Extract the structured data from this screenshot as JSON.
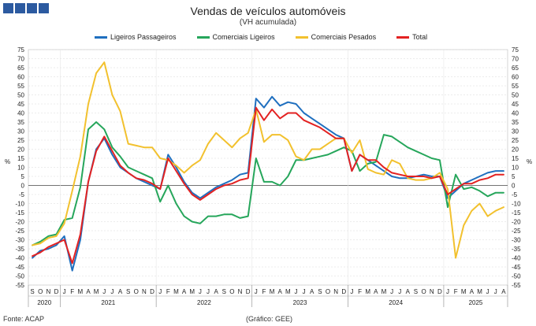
{
  "header": {
    "title": "Vendas de veículos automóveis",
    "subtitle": "(VH acumulada)"
  },
  "footer": {
    "source": "Fonte: ACAP",
    "credit": "(Gráfico: GEE)"
  },
  "axis": {
    "unit_left": "%",
    "unit_right": "%"
  },
  "colors": {
    "ligeiros_passageiros": "#1f6fbf",
    "comerciais_ligeiros": "#26a65b",
    "comerciais_pesados": "#f2c12e",
    "total": "#e32222",
    "header_blocks": "#2c5aa0"
  },
  "chart_data": {
    "type": "line",
    "title": "Vendas de veículos automóveis",
    "subtitle": "(VH acumulada)",
    "ylabel": "%",
    "ylim": [
      -55,
      75
    ],
    "yticks": [
      -55,
      -50,
      -45,
      -40,
      -35,
      -30,
      -25,
      -20,
      -15,
      -10,
      -5,
      0,
      5,
      10,
      15,
      20,
      25,
      30,
      35,
      40,
      45,
      50,
      55,
      60,
      65,
      70,
      75
    ],
    "grid": true,
    "legend_position": "top",
    "months": [
      "S",
      "O",
      "N",
      "D",
      "J",
      "F",
      "M",
      "A",
      "M",
      "J",
      "J",
      "A",
      "S",
      "O",
      "N",
      "D",
      "J",
      "F",
      "M",
      "A",
      "M",
      "J",
      "J",
      "A",
      "S",
      "O",
      "N",
      "D",
      "J",
      "F",
      "M",
      "A",
      "M",
      "J",
      "J",
      "A",
      "S",
      "O",
      "N",
      "D",
      "J",
      "F",
      "M",
      "A",
      "M",
      "J",
      "J",
      "A",
      "S",
      "O",
      "N",
      "D",
      "J",
      "F",
      "M",
      "A",
      "M",
      "J",
      "J",
      "A"
    ],
    "years": [
      {
        "label": "2020",
        "start": 0,
        "count": 4
      },
      {
        "label": "2021",
        "start": 4,
        "count": 12
      },
      {
        "label": "2022",
        "start": 16,
        "count": 12
      },
      {
        "label": "2023",
        "start": 28,
        "count": 12
      },
      {
        "label": "2024",
        "start": 40,
        "count": 12
      },
      {
        "label": "2025",
        "start": 52,
        "count": 8
      }
    ],
    "series": [
      {
        "name": "Ligeiros Passageiros",
        "color": "#1f6fbf",
        "values": [
          -40,
          -36,
          -35,
          -33,
          -28,
          -47,
          -30,
          2,
          20,
          26,
          17,
          10,
          7,
          4,
          2,
          0,
          -2,
          17,
          10,
          2,
          -4,
          -7,
          -4,
          -1,
          1,
          3,
          6,
          7,
          48,
          43,
          49,
          44,
          46,
          45,
          40,
          37,
          34,
          31,
          28,
          26,
          8,
          17,
          14,
          11,
          8,
          5,
          4,
          4,
          5,
          6,
          5,
          5,
          -7,
          -3,
          1,
          3,
          5,
          7,
          8,
          8
        ]
      },
      {
        "name": "Comerciais Ligeiros",
        "color": "#26a65b",
        "values": [
          -33,
          -31,
          -28,
          -27,
          -19,
          -18,
          -1,
          31,
          35,
          31,
          21,
          16,
          10,
          8,
          6,
          4,
          -9,
          0,
          -10,
          -17,
          -20,
          -21,
          -17,
          -17,
          -16,
          -16,
          -18,
          -17,
          15,
          2,
          2,
          0,
          5,
          14,
          14,
          15,
          16,
          17,
          19,
          21,
          19,
          8,
          12,
          13,
          28,
          27,
          24,
          21,
          19,
          17,
          15,
          14,
          -12,
          6,
          -2,
          -1,
          -3,
          -6,
          -4,
          -4
        ]
      },
      {
        "name": "Comerciais Pesados",
        "color": "#f2c12e",
        "values": [
          -33,
          -32,
          -29,
          -28,
          -21,
          -3,
          16,
          45,
          62,
          68,
          50,
          41,
          23,
          22,
          21,
          21,
          15,
          14,
          11,
          7,
          11,
          14,
          23,
          29,
          25,
          21,
          26,
          29,
          42,
          24,
          28,
          28,
          25,
          16,
          14,
          20,
          20,
          23,
          26,
          26,
          18,
          25,
          9,
          7,
          6,
          14,
          12,
          4,
          3,
          3,
          4,
          7,
          -2,
          -40,
          -22,
          -14,
          -10,
          -17,
          -14,
          -12
        ]
      },
      {
        "name": "Total",
        "color": "#e32222",
        "values": [
          -39,
          -37,
          -34,
          -32,
          -30,
          -43,
          -27,
          2,
          19,
          27,
          19,
          11,
          7,
          4,
          3,
          1,
          -2,
          15,
          8,
          1,
          -5,
          -8,
          -5,
          -2,
          0,
          1,
          3,
          4,
          43,
          36,
          42,
          37,
          40,
          40,
          36,
          34,
          32,
          29,
          26,
          26,
          8,
          17,
          14,
          14,
          10,
          7,
          6,
          5,
          5,
          5,
          4,
          5,
          -5,
          -2,
          1,
          1,
          3,
          4,
          6,
          6
        ]
      }
    ]
  }
}
